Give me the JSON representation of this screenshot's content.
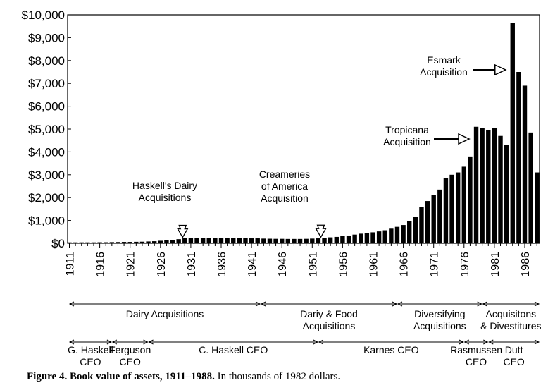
{
  "chart_data": {
    "type": "bar",
    "title": "",
    "xlabel": "",
    "ylabel": "",
    "ylim": [
      0,
      10000
    ],
    "y_ticks": [
      "$0",
      "$1,000",
      "$2,000",
      "$3,000",
      "$4,000",
      "$5,000",
      "$6,000",
      "$7,000",
      "$8,000",
      "$9,000",
      "$10,000"
    ],
    "x_ticks": [
      "1911",
      "1916",
      "1921",
      "1926",
      "1931",
      "1936",
      "1941",
      "1946",
      "1951",
      "1956",
      "1961",
      "1966",
      "1971",
      "1976",
      "1981",
      "1986"
    ],
    "bar_color": "#000000",
    "series": [
      {
        "x": [
          1911,
          1912,
          1913,
          1914,
          1915,
          1916,
          1917,
          1918,
          1919,
          1920,
          1921,
          1922,
          1923,
          1924,
          1925,
          1926,
          1927,
          1928,
          1929,
          1930,
          1931,
          1932,
          1933,
          1934,
          1935,
          1936,
          1937,
          1938,
          1939,
          1940,
          1941,
          1942,
          1943,
          1944,
          1945,
          1946,
          1947,
          1948,
          1949,
          1950,
          1951,
          1952,
          1953,
          1954,
          1955,
          1956,
          1957,
          1958,
          1959,
          1960,
          1961,
          1962,
          1963,
          1964,
          1965,
          1966,
          1967,
          1968,
          1969,
          1970,
          1971,
          1972,
          1973,
          1974,
          1975,
          1976,
          1977,
          1978,
          1979,
          1980,
          1981,
          1982,
          1983,
          1984,
          1985,
          1986,
          1987,
          1988
        ],
        "values": [
          40,
          40,
          40,
          40,
          40,
          45,
          45,
          50,
          55,
          60,
          60,
          65,
          70,
          80,
          90,
          110,
          130,
          150,
          180,
          220,
          240,
          240,
          235,
          230,
          230,
          225,
          225,
          225,
          220,
          220,
          215,
          215,
          205,
          200,
          195,
          195,
          190,
          190,
          190,
          195,
          205,
          215,
          230,
          260,
          280,
          310,
          340,
          380,
          420,
          450,
          480,
          520,
          570,
          640,
          720,
          800,
          960,
          1150,
          1600,
          1850,
          2100,
          2350,
          2850,
          3000,
          3100,
          3350,
          3800,
          5100,
          5050,
          4950,
          5050,
          4700,
          4300,
          9650,
          7500,
          6900,
          4850,
          3100
        ]
      }
    ],
    "annotations": [
      {
        "line1": "Haskell's Dairy",
        "line2": "Acquisitions",
        "year": 1930
      },
      {
        "line1": "Creameries",
        "line2": "of America",
        "line3": "Acquisition",
        "year": 1953
      },
      {
        "line1": "Tropicana",
        "line2": "Acquisition",
        "year": 1978
      },
      {
        "line1": "Esmark",
        "line2": "Acquisition",
        "year": 1984
      }
    ],
    "periods": [
      {
        "line1": "Dairy Acquisitions",
        "line2": "",
        "start": 1911,
        "end": 1942.5
      },
      {
        "line1": "Dariy & Food",
        "line2": "Acquisitions",
        "start": 1942.5,
        "end": 1965
      },
      {
        "line1": "Diversifying",
        "line2": "Acquisitions",
        "start": 1965,
        "end": 1979
      },
      {
        "line1": "Acquisitons",
        "line2": "& Divestitures",
        "start": 1979,
        "end": 1988
      }
    ],
    "ceos": [
      {
        "line1": "G. Haskell",
        "line2": "CEO",
        "start": 1911,
        "end": 1918
      },
      {
        "line1": "Ferguson",
        "line2": "CEO",
        "start": 1918,
        "end": 1924
      },
      {
        "line1": "C. Haskell CEO",
        "line2": "",
        "start": 1924,
        "end": 1952
      },
      {
        "line1": "Karnes CEO",
        "line2": "",
        "start": 1952,
        "end": 1976
      },
      {
        "line1": "Rasmussen",
        "line2": "CEO",
        "start": 1976,
        "end": 1980
      },
      {
        "line1": "Dutt",
        "line2": "CEO",
        "start": 1980,
        "end": 1988
      }
    ]
  },
  "caption": {
    "bold": "Figure 4. Book value of assets, 1911–1988.",
    "rest": " In thousands of 1982 dollars."
  }
}
